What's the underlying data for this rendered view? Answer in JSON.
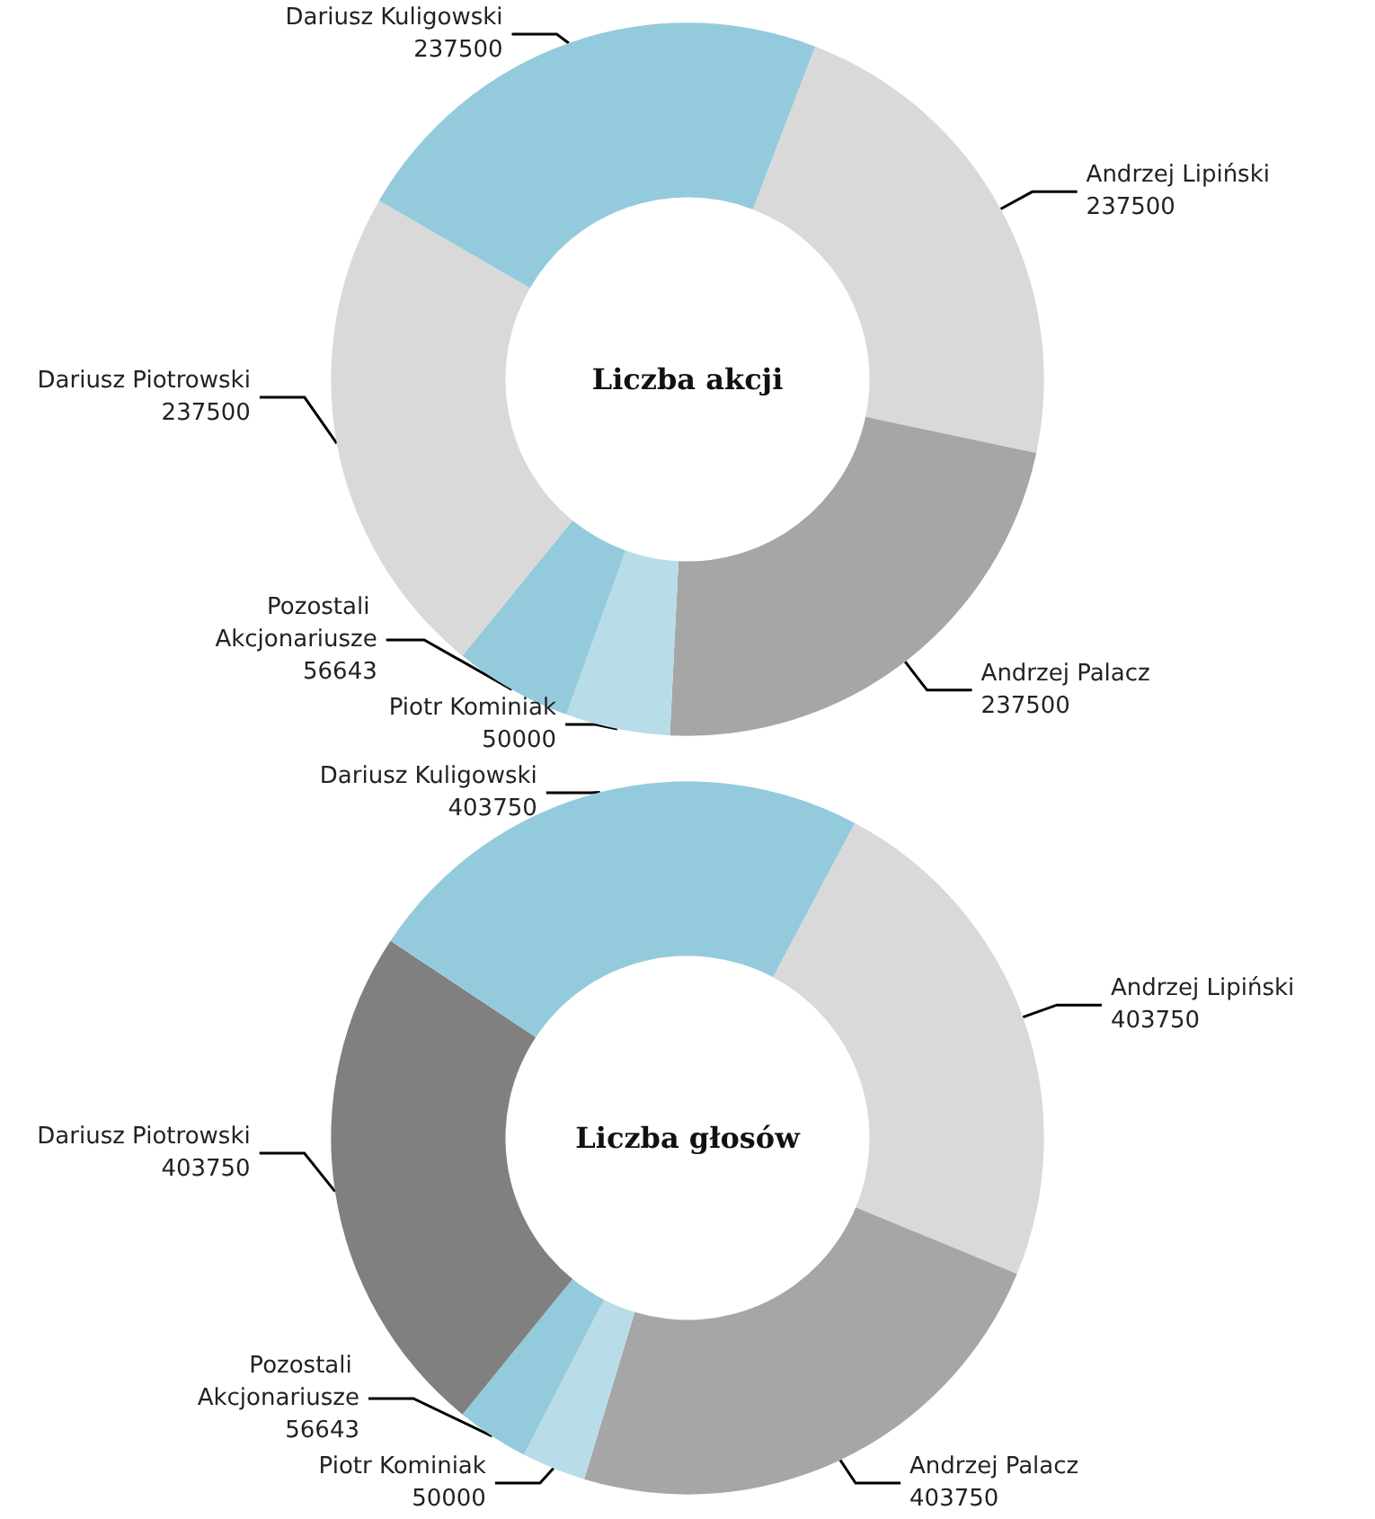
{
  "chart_data": [
    {
      "type": "donut",
      "title": "Liczba akcji",
      "categories": [
        "Andrzej Lipiński",
        "Andrzej Palacz",
        "Piotr Kominiak",
        "Pozostali Akcjonariusze",
        "Dariusz Piotrowski",
        "Dariusz Kuligowski"
      ],
      "values": [
        237500,
        237500,
        50000,
        56643,
        237500,
        237500
      ],
      "colors": [
        "#d9d9d9",
        "#a6a6a6",
        "#b8dde8",
        "#94cbdc",
        "#d9d9d9",
        "#94cbdc"
      ],
      "data_labels": true
    },
    {
      "type": "donut",
      "title": "Liczba głosów",
      "categories": [
        "Andrzej Lipiński",
        "Andrzej Palacz",
        "Piotr Kominiak",
        "Pozostali Akcjonariusze",
        "Dariusz Piotrowski",
        "Dariusz Kuligowski"
      ],
      "values": [
        403750,
        403750,
        50000,
        56643,
        403750,
        403750
      ],
      "colors": [
        "#d9d9d9",
        "#a6a6a6",
        "#b8dde8",
        "#94cbdc",
        "#808080",
        "#94cbdc"
      ],
      "data_labels": true
    }
  ]
}
